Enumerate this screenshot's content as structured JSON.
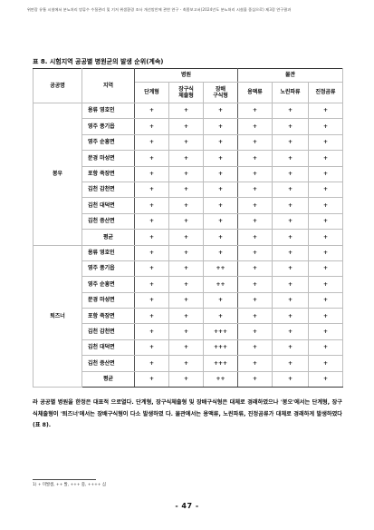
{
  "header": {
    "running_title": "위판장 유통 시설에서 분뇨처리 방류수 수질관리 및 기저 위생환경 조사 개선방안에 관한 연구 - 최종보고서(2024년도 분뇨처리 시설을 중심으로) 제3장 연구결과"
  },
  "caption": "표 8. 시험지역 공공별 병원균의 발생 순위(계속)",
  "table": {
    "headers": {
      "col1": "공공명",
      "col2": "지역",
      "group_bacteria": "병원",
      "group_viruses": "물관",
      "bacteria_cols": [
        "단계형",
        "장구식\n체출형",
        "장배\n구식형"
      ],
      "virus_cols": [
        "용액류",
        "노린파류",
        "진정곰류"
      ]
    },
    "groups": [
      {
        "name": "봉우",
        "rows": [
          {
            "facility": "용류 영호인",
            "values": [
              "+",
              "+",
              "+",
              "+",
              "+",
              "+"
            ]
          },
          {
            "facility": "영주 풍기읍",
            "values": [
              "+",
              "+",
              "+",
              "+",
              "+",
              "+"
            ]
          },
          {
            "facility": "영주 순흥면",
            "values": [
              "+",
              "+",
              "+",
              "+",
              "+",
              "+"
            ]
          },
          {
            "facility": "문경 마성면",
            "values": [
              "+",
              "+",
              "+",
              "+",
              "+",
              "+"
            ]
          },
          {
            "facility": "포항 죽장면",
            "values": [
              "+",
              "+",
              "+",
              "+",
              "+",
              "+"
            ]
          },
          {
            "facility": "김천 감천면",
            "values": [
              "+",
              "+",
              "+",
              "+",
              "+",
              "+"
            ]
          },
          {
            "facility": "김천 대덕면",
            "values": [
              "+",
              "+",
              "+",
              "+",
              "+",
              "+"
            ]
          },
          {
            "facility": "김천 증산면",
            "values": [
              "+",
              "+",
              "+",
              "+",
              "+",
              "+"
            ]
          },
          {
            "facility": "평균",
            "values": [
              "+",
              "+",
              "+",
              "+",
              "+",
              "+"
            ]
          }
        ]
      },
      {
        "name": "퇴즈너",
        "rows": [
          {
            "facility": "용류 영호인",
            "values": [
              "+",
              "+",
              "+",
              "+",
              "+",
              "+"
            ]
          },
          {
            "facility": "영주 풍기읍",
            "values": [
              "+",
              "+",
              "++",
              "+",
              "+",
              "+"
            ]
          },
          {
            "facility": "영주 순흥면",
            "values": [
              "+",
              "+",
              "++",
              "+",
              "+",
              "+"
            ]
          },
          {
            "facility": "문경 마성면",
            "values": [
              "+",
              "+",
              "+",
              "+",
              "+",
              "+"
            ]
          },
          {
            "facility": "포항 죽장면",
            "values": [
              "+",
              "+",
              "+",
              "+",
              "+",
              "+"
            ]
          },
          {
            "facility": "김천 감천면",
            "values": [
              "+",
              "+",
              "+++",
              "+",
              "+",
              "+"
            ]
          },
          {
            "facility": "김천 대덕면",
            "values": [
              "+",
              "+",
              "+++",
              "+",
              "+",
              "+"
            ]
          },
          {
            "facility": "김천 증산면",
            "values": [
              "+",
              "+",
              "+++",
              "+",
              "+",
              "+"
            ]
          },
          {
            "facility": "평균",
            "values": [
              "+",
              "+",
              "++",
              "+",
              "+",
              "+"
            ]
          }
        ]
      }
    ]
  },
  "body_text": "라 공공별 병원을 한정은 대표적 으로열다. 단계형, 장구식체출형 및 장배구식형은 대체로 경래하였으나 '봉오'에서는 단계형, 장구식체출형이 '퇴즈너'에서는 장배구식형이 다소 발생하였 다. 물관에서는 용액류, 노린파류, 진정곰류가 대체로 경래하게 발생하였다(표 8).",
  "footnote": "1) + 미발생, ++ 발, +++ 중, ++++ 심",
  "page_number": "- 47 -"
}
